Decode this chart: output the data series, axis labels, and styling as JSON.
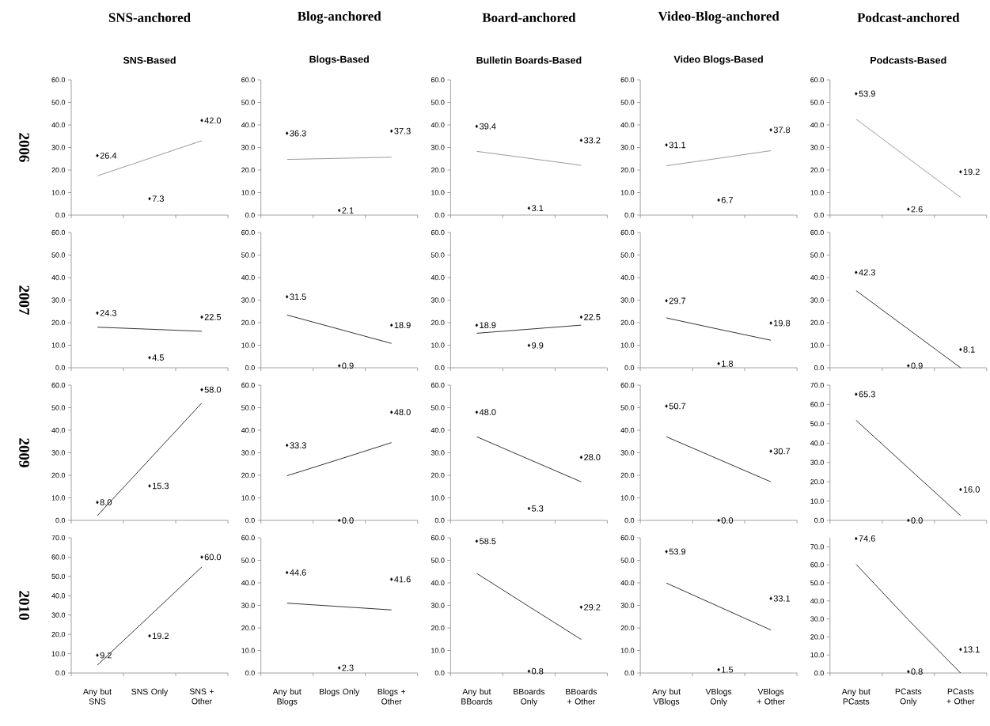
{
  "chart_data": [
    {
      "type": "scatter",
      "title": "SNS-anchored",
      "subtitle": "SNS-Based",
      "ylabel": "2006",
      "marker": "diamond",
      "tick_labels": "y",
      "categories": [
        null,
        null,
        null
      ],
      "ylim": [
        0,
        60
      ],
      "yticks": [
        {
          "value": 0,
          "label": "0.0"
        },
        {
          "value": 10,
          "label": "10.0"
        },
        {
          "value": 20,
          "label": "20.0"
        },
        {
          "value": 30,
          "label": "30.0"
        },
        {
          "value": 40,
          "label": "40.0"
        },
        {
          "value": 50,
          "label": "50.0"
        },
        {
          "value": 60,
          "label": "60.0"
        }
      ],
      "series": [
        {
          "color": "#000000",
          "values": [
            26.4,
            7.3,
            42.0
          ],
          "value_labels": [
            "26.4",
            "7.3",
            "42.0"
          ]
        },
        {
          "type": "line",
          "marker": "none",
          "color": "#808080",
          "values": [
            17.4,
            25.2,
            33.0
          ]
        }
      ]
    },
    {
      "type": "scatter",
      "title": "Blog-anchored",
      "subtitle": "Blogs-Based",
      "marker": "diamond",
      "tick_labels": "y",
      "categories": [
        null,
        null,
        null
      ],
      "ylim": [
        0,
        60
      ],
      "yticks": [
        {
          "value": 0,
          "label": "0.0"
        },
        {
          "value": 10,
          "label": "10.0"
        },
        {
          "value": 20,
          "label": "20.0"
        },
        {
          "value": 30,
          "label": "30.0"
        },
        {
          "value": 40,
          "label": "40.0"
        },
        {
          "value": 50,
          "label": "50.0"
        },
        {
          "value": 60,
          "label": "60.0"
        }
      ],
      "series": [
        {
          "color": "#000000",
          "values": [
            36.3,
            2.1,
            37.3
          ],
          "value_labels": [
            "36.3",
            "2.1",
            "37.3"
          ]
        },
        {
          "type": "line",
          "marker": "none",
          "color": "#808080",
          "values": [
            24.7,
            25.2,
            25.7
          ]
        }
      ]
    },
    {
      "type": "scatter",
      "title": "Board-anchored",
      "subtitle": "Bulletin Boards-Based",
      "marker": "diamond",
      "tick_labels": "y",
      "categories": [
        null,
        null,
        null
      ],
      "ylim": [
        0,
        60
      ],
      "yticks": [
        {
          "value": 0,
          "label": "0.0"
        },
        {
          "value": 10,
          "label": "10.0"
        },
        {
          "value": 20,
          "label": "20.0"
        },
        {
          "value": 30,
          "label": "30.0"
        },
        {
          "value": 40,
          "label": "40.0"
        },
        {
          "value": 50,
          "label": "50.0"
        },
        {
          "value": 60,
          "label": "60.0"
        }
      ],
      "series": [
        {
          "color": "#000000",
          "values": [
            39.4,
            3.1,
            33.2
          ],
          "value_labels": [
            "39.4",
            "3.1",
            "33.2"
          ]
        },
        {
          "type": "line",
          "marker": "none",
          "color": "#808080",
          "values": [
            28.3,
            25.2,
            22.1
          ]
        }
      ]
    },
    {
      "type": "scatter",
      "title": "Video-Blog-anchored",
      "subtitle": "Video Blogs-Based",
      "marker": "diamond",
      "tick_labels": "y",
      "categories": [
        null,
        null,
        null
      ],
      "ylim": [
        0,
        60
      ],
      "yticks": [
        {
          "value": 0,
          "label": "0.0"
        },
        {
          "value": 10,
          "label": "10.0"
        },
        {
          "value": 20,
          "label": "20.0"
        },
        {
          "value": 30,
          "label": "30.0"
        },
        {
          "value": 40,
          "label": "40.0"
        },
        {
          "value": 50,
          "label": "50.0"
        },
        {
          "value": 60,
          "label": "60.0"
        }
      ],
      "series": [
        {
          "color": "#000000",
          "values": [
            31.1,
            6.7,
            37.8
          ],
          "value_labels": [
            "31.1",
            "6.7",
            "37.8"
          ]
        },
        {
          "type": "line",
          "marker": "none",
          "color": "#808080",
          "values": [
            21.9,
            25.2,
            28.6
          ]
        }
      ]
    },
    {
      "type": "scatter",
      "title": "Podcast-anchored",
      "subtitle": "Podcasts-Based",
      "marker": "diamond",
      "tick_labels": "y",
      "categories": [
        null,
        null,
        null
      ],
      "ylim": [
        0,
        60
      ],
      "yticks": [
        {
          "value": 0,
          "label": "0.0"
        },
        {
          "value": 10,
          "label": "10.0"
        },
        {
          "value": 20,
          "label": "20.0"
        },
        {
          "value": 30,
          "label": "30.0"
        },
        {
          "value": 40,
          "label": "40.0"
        },
        {
          "value": 50,
          "label": "50.0"
        },
        {
          "value": 60,
          "label": "60.0"
        }
      ],
      "series": [
        {
          "color": "#000000",
          "values": [
            53.9,
            2.6,
            19.2
          ],
          "value_labels": [
            "53.9",
            "2.6",
            "19.2"
          ]
        },
        {
          "type": "line",
          "marker": "none",
          "color": "#808080",
          "values": [
            42.6,
            25.2,
            7.9
          ]
        }
      ]
    },
    {
      "type": "scatter",
      "ylabel": "2007",
      "marker": "diamond",
      "tick_labels": "y",
      "categories": [
        null,
        null,
        null
      ],
      "ylim": [
        0,
        60
      ],
      "yticks": [
        {
          "value": 0,
          "label": "0.0"
        },
        {
          "value": 10,
          "label": "10.0"
        },
        {
          "value": 20,
          "label": "20.0"
        },
        {
          "value": 30,
          "label": "30.0"
        },
        {
          "value": 40,
          "label": "40.0"
        },
        {
          "value": 50,
          "label": "50.0"
        },
        {
          "value": 60,
          "label": "60.0"
        }
      ],
      "series": [
        {
          "color": "#000000",
          "values": [
            24.3,
            4.5,
            22.5
          ],
          "value_labels": [
            "24.3",
            "4.5",
            "22.5"
          ]
        },
        {
          "type": "line",
          "marker": "none",
          "color": "#000000",
          "values": [
            18.0,
            17.1,
            16.2
          ]
        }
      ]
    },
    {
      "type": "scatter",
      "marker": "diamond",
      "tick_labels": "y",
      "categories": [
        null,
        null,
        null
      ],
      "ylim": [
        0,
        60
      ],
      "yticks": [
        {
          "value": 0,
          "label": "0.0"
        },
        {
          "value": 10,
          "label": "10.0"
        },
        {
          "value": 20,
          "label": "20.0"
        },
        {
          "value": 30,
          "label": "30.0"
        },
        {
          "value": 40,
          "label": "40.0"
        },
        {
          "value": 50,
          "label": "50.0"
        },
        {
          "value": 60,
          "label": "60.0"
        }
      ],
      "series": [
        {
          "color": "#000000",
          "values": [
            31.5,
            0.9,
            18.9
          ],
          "value_labels": [
            "31.5",
            "0.9",
            "18.9"
          ]
        },
        {
          "type": "line",
          "marker": "none",
          "color": "#000000",
          "values": [
            23.4,
            17.1,
            10.8
          ]
        }
      ]
    },
    {
      "type": "scatter",
      "marker": "diamond",
      "tick_labels": "y",
      "categories": [
        null,
        null,
        null
      ],
      "ylim": [
        0,
        60
      ],
      "yticks": [
        {
          "value": 0,
          "label": "0.0"
        },
        {
          "value": 10,
          "label": "10.0"
        },
        {
          "value": 20,
          "label": "20.0"
        },
        {
          "value": 30,
          "label": "30.0"
        },
        {
          "value": 40,
          "label": "40.0"
        },
        {
          "value": 50,
          "label": "50.0"
        },
        {
          "value": 60,
          "label": "60.0"
        }
      ],
      "series": [
        {
          "color": "#000000",
          "values": [
            18.9,
            9.9,
            22.5
          ],
          "value_labels": [
            "18.9",
            "9.9",
            "22.5"
          ]
        },
        {
          "type": "line",
          "marker": "none",
          "color": "#000000",
          "values": [
            15.3,
            17.1,
            18.9
          ]
        }
      ]
    },
    {
      "type": "scatter",
      "marker": "diamond",
      "tick_labels": "y",
      "categories": [
        null,
        null,
        null
      ],
      "ylim": [
        0,
        60
      ],
      "yticks": [
        {
          "value": 0,
          "label": "0.0"
        },
        {
          "value": 10,
          "label": "10.0"
        },
        {
          "value": 20,
          "label": "20.0"
        },
        {
          "value": 30,
          "label": "30.0"
        },
        {
          "value": 40,
          "label": "40.0"
        },
        {
          "value": 50,
          "label": "50.0"
        },
        {
          "value": 60,
          "label": "60.0"
        }
      ],
      "series": [
        {
          "color": "#000000",
          "values": [
            29.7,
            1.8,
            19.8
          ],
          "value_labels": [
            "29.7",
            "1.8",
            "19.8"
          ]
        },
        {
          "type": "line",
          "marker": "none",
          "color": "#000000",
          "values": [
            22.1,
            17.1,
            12.2
          ]
        }
      ]
    },
    {
      "type": "scatter",
      "marker": "diamond",
      "tick_labels": "y",
      "categories": [
        null,
        null,
        null
      ],
      "ylim": [
        0,
        60
      ],
      "yticks": [
        {
          "value": 0,
          "label": "0.0"
        },
        {
          "value": 10,
          "label": "10.0"
        },
        {
          "value": 20,
          "label": "20.0"
        },
        {
          "value": 30,
          "label": "30.0"
        },
        {
          "value": 40,
          "label": "40.0"
        },
        {
          "value": 50,
          "label": "50.0"
        },
        {
          "value": 60,
          "label": "60.0"
        }
      ],
      "series": [
        {
          "color": "#000000",
          "values": [
            42.3,
            0.9,
            8.1
          ],
          "value_labels": [
            "42.3",
            "0.9",
            "8.1"
          ]
        },
        {
          "type": "line",
          "marker": "none",
          "color": "#000000",
          "values": [
            34.2,
            17.1,
            0.0
          ]
        }
      ]
    },
    {
      "type": "scatter",
      "ylabel": "2009",
      "marker": "diamond",
      "tick_labels": "y",
      "categories": [
        null,
        null,
        null
      ],
      "ylim": [
        0,
        60
      ],
      "yticks": [
        {
          "value": 0,
          "label": "0.0"
        },
        {
          "value": 10,
          "label": "10.0"
        },
        {
          "value": 20,
          "label": "20.0"
        },
        {
          "value": 30,
          "label": "30.0"
        },
        {
          "value": 40,
          "label": "40.0"
        },
        {
          "value": 50,
          "label": "50.0"
        },
        {
          "value": 60,
          "label": "60.0"
        }
      ],
      "series": [
        {
          "color": "#000000",
          "values": [
            8.0,
            15.3,
            58.0
          ],
          "value_labels": [
            "8.0",
            "15.3",
            "58.0"
          ]
        },
        {
          "type": "line",
          "marker": "none",
          "color": "#000000",
          "values": [
            2.1,
            27.1,
            52.1
          ]
        }
      ]
    },
    {
      "type": "scatter",
      "marker": "diamond",
      "tick_labels": "y",
      "categories": [
        null,
        null,
        null
      ],
      "ylim": [
        0,
        60
      ],
      "yticks": [
        {
          "value": 0,
          "label": "0.0"
        },
        {
          "value": 10,
          "label": "10.0"
        },
        {
          "value": 20,
          "label": "20.0"
        },
        {
          "value": 30,
          "label": "30.0"
        },
        {
          "value": 40,
          "label": "40.0"
        },
        {
          "value": 50,
          "label": "50.0"
        },
        {
          "value": 60,
          "label": "60.0"
        }
      ],
      "series": [
        {
          "color": "#000000",
          "values": [
            33.3,
            0.0,
            48.0
          ],
          "value_labels": [
            "33.3",
            "0.0",
            "48.0"
          ]
        },
        {
          "type": "line",
          "marker": "none",
          "color": "#000000",
          "values": [
            19.8,
            27.1,
            34.5
          ]
        }
      ]
    },
    {
      "type": "scatter",
      "marker": "diamond",
      "tick_labels": "y",
      "categories": [
        null,
        null,
        null
      ],
      "ylim": [
        0,
        60
      ],
      "yticks": [
        {
          "value": 0,
          "label": "0.0"
        },
        {
          "value": 10,
          "label": "10.0"
        },
        {
          "value": 20,
          "label": "20.0"
        },
        {
          "value": 30,
          "label": "30.0"
        },
        {
          "value": 40,
          "label": "40.0"
        },
        {
          "value": 50,
          "label": "50.0"
        },
        {
          "value": 60,
          "label": "60.0"
        }
      ],
      "series": [
        {
          "color": "#000000",
          "values": [
            48.0,
            5.3,
            28.0
          ],
          "value_labels": [
            "48.0",
            "5.3",
            "28.0"
          ]
        },
        {
          "type": "line",
          "marker": "none",
          "color": "#000000",
          "values": [
            37.1,
            27.1,
            17.1
          ]
        }
      ]
    },
    {
      "type": "scatter",
      "marker": "diamond",
      "tick_labels": "y",
      "categories": [
        null,
        null,
        null
      ],
      "ylim": [
        0,
        60
      ],
      "yticks": [
        {
          "value": 0,
          "label": "0.0"
        },
        {
          "value": 10,
          "label": "10.0"
        },
        {
          "value": 20,
          "label": "20.0"
        },
        {
          "value": 30,
          "label": "30.0"
        },
        {
          "value": 40,
          "label": "40.0"
        },
        {
          "value": 50,
          "label": "50.0"
        },
        {
          "value": 60,
          "label": "60.0"
        }
      ],
      "series": [
        {
          "color": "#000000",
          "values": [
            50.7,
            0.0,
            30.7
          ],
          "value_labels": [
            "50.7",
            "0.0",
            "30.7"
          ]
        },
        {
          "type": "line",
          "marker": "none",
          "color": "#000000",
          "values": [
            37.1,
            27.1,
            17.1
          ]
        }
      ]
    },
    {
      "type": "scatter",
      "marker": "diamond",
      "tick_labels": "y",
      "categories": [
        null,
        null,
        null
      ],
      "ylim": [
        0,
        70
      ],
      "yticks": [
        {
          "value": 0,
          "label": "0.0"
        },
        {
          "value": 10,
          "label": "10.0"
        },
        {
          "value": 20,
          "label": "20.0"
        },
        {
          "value": 30,
          "label": "30.0"
        },
        {
          "value": 40,
          "label": "40.0"
        },
        {
          "value": 50,
          "label": "50.0"
        },
        {
          "value": 60,
          "label": "60.0"
        },
        {
          "value": 70,
          "label": "70.0"
        }
      ],
      "series": [
        {
          "color": "#000000",
          "values": [
            65.3,
            0.0,
            16.0
          ],
          "value_labels": [
            "65.3",
            "0.0",
            "16.0"
          ]
        },
        {
          "type": "line",
          "marker": "none",
          "color": "#000000",
          "values": [
            51.8,
            27.1,
            2.5
          ]
        }
      ]
    },
    {
      "type": "scatter",
      "ylabel": "2010",
      "marker": "diamond",
      "categories": [
        "Any but SNS",
        "SNS Only",
        "SNS + Other"
      ],
      "ylim": [
        0,
        70
      ],
      "yticks": [
        {
          "value": 0,
          "label": "0.0"
        },
        {
          "value": 10,
          "label": "10.0"
        },
        {
          "value": 20,
          "label": "20.0"
        },
        {
          "value": 30,
          "label": "30.0"
        },
        {
          "value": 40,
          "label": "40.0"
        },
        {
          "value": 50,
          "label": "50.0"
        },
        {
          "value": 60,
          "label": "60.0"
        },
        {
          "value": 70,
          "label": "70.0"
        }
      ],
      "series": [
        {
          "color": "#000000",
          "values": [
            9.2,
            19.2,
            60.0
          ],
          "value_labels": [
            "9.2",
            "19.2",
            "60.0"
          ]
        },
        {
          "type": "line",
          "marker": "none",
          "color": "#000000",
          "values": [
            4.1,
            29.5,
            54.9
          ]
        }
      ]
    },
    {
      "type": "scatter",
      "marker": "diamond",
      "categories": [
        "Any but Blogs",
        "Blogs Only",
        "Blogs + Other"
      ],
      "ylim": [
        0,
        60
      ],
      "yticks": [
        {
          "value": 0,
          "label": "0.0"
        },
        {
          "value": 10,
          "label": "10.0"
        },
        {
          "value": 20,
          "label": "20.0"
        },
        {
          "value": 30,
          "label": "30.0"
        },
        {
          "value": 40,
          "label": "40.0"
        },
        {
          "value": 50,
          "label": "50.0"
        },
        {
          "value": 60,
          "label": "60.0"
        }
      ],
      "series": [
        {
          "color": "#000000",
          "values": [
            44.6,
            2.3,
            41.6
          ],
          "value_labels": [
            "44.6",
            "2.3",
            "41.6"
          ]
        },
        {
          "type": "line",
          "marker": "none",
          "color": "#000000",
          "values": [
            31.0,
            29.5,
            28.0
          ]
        }
      ]
    },
    {
      "type": "scatter",
      "marker": "diamond",
      "categories": [
        "Any but BBoards",
        "BBoards Only",
        "BBoards + Other"
      ],
      "ylim": [
        0,
        60
      ],
      "yticks": [
        {
          "value": 0,
          "label": "0.0"
        },
        {
          "value": 10,
          "label": "10.0"
        },
        {
          "value": 20,
          "label": "20.0"
        },
        {
          "value": 30,
          "label": "30.0"
        },
        {
          "value": 40,
          "label": "40.0"
        },
        {
          "value": 50,
          "label": "50.0"
        },
        {
          "value": 60,
          "label": "60.0"
        }
      ],
      "series": [
        {
          "color": "#000000",
          "values": [
            58.5,
            0.8,
            29.2
          ],
          "value_labels": [
            "58.5",
            "0.8",
            "29.2"
          ]
        },
        {
          "type": "line",
          "marker": "none",
          "color": "#000000",
          "values": [
            44.2,
            29.5,
            14.9
          ]
        }
      ]
    },
    {
      "type": "scatter",
      "marker": "diamond",
      "categories": [
        "Any but VBlogs",
        "VBlogs Only",
        "VBlogs + Other"
      ],
      "ylim": [
        0,
        60
      ],
      "yticks": [
        {
          "value": 0,
          "label": "0.0"
        },
        {
          "value": 10,
          "label": "10.0"
        },
        {
          "value": 20,
          "label": "20.0"
        },
        {
          "value": 30,
          "label": "30.0"
        },
        {
          "value": 40,
          "label": "40.0"
        },
        {
          "value": 50,
          "label": "50.0"
        },
        {
          "value": 60,
          "label": "60.0"
        }
      ],
      "series": [
        {
          "color": "#000000",
          "values": [
            53.9,
            1.5,
            33.1
          ],
          "value_labels": [
            "53.9",
            "1.5",
            "33.1"
          ]
        },
        {
          "type": "line",
          "marker": "none",
          "color": "#000000",
          "values": [
            39.9,
            29.5,
            19.1
          ]
        }
      ]
    },
    {
      "type": "scatter",
      "marker": "diamond",
      "categories": [
        "Any but PCasts",
        "PCasts Only",
        "PCasts + Other"
      ],
      "ylim": [
        0,
        75
      ],
      "yticks": [
        {
          "value": 0,
          "label": "0.0"
        },
        {
          "value": 10,
          "label": "10.0"
        },
        {
          "value": 20,
          "label": "20.0"
        },
        {
          "value": 30,
          "label": "30.0"
        },
        {
          "value": 40,
          "label": "40.0"
        },
        {
          "value": 50,
          "label": "50.0"
        },
        {
          "value": 60,
          "label": "60.0"
        },
        {
          "value": 70,
          "label": "70.0"
        }
      ],
      "series": [
        {
          "color": "#000000",
          "values": [
            74.6,
            0.8,
            13.1
          ],
          "value_labels": [
            "74.6",
            "0.8",
            "13.1"
          ]
        },
        {
          "type": "line",
          "marker": "none",
          "color": "#000000",
          "values": [
            60.3,
            29.5,
            0.0
          ]
        }
      ]
    }
  ]
}
